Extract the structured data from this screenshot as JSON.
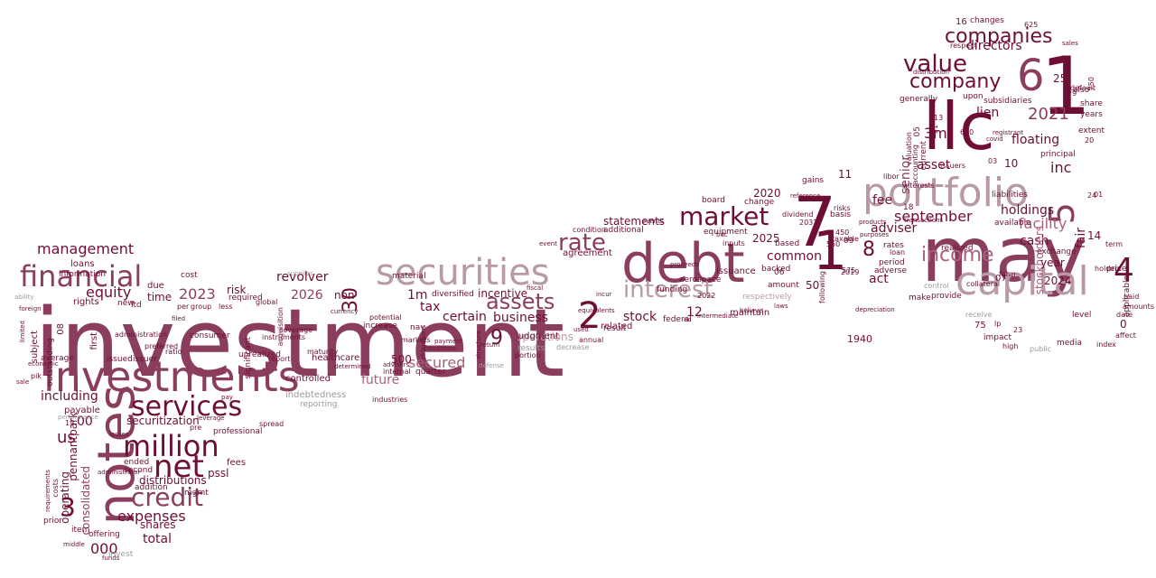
{
  "palette": {
    "dark": "#6e0e35",
    "mauve": "#8a3d5c",
    "rose": "#a9607d",
    "pale": "#b89aa6",
    "grey": "#9a9a9a"
  },
  "words": [
    {
      "text": "investment",
      "color": "mauve"
    },
    {
      "text": "investments",
      "color": "mauve"
    },
    {
      "text": "notes",
      "color": "mauve"
    },
    {
      "text": "llc",
      "color": "dark"
    },
    {
      "text": "may",
      "color": "mauve"
    },
    {
      "text": "debt",
      "color": "mauve"
    },
    {
      "text": "7",
      "color": "dark"
    },
    {
      "text": "1",
      "color": "dark"
    },
    {
      "text": "1",
      "color": "dark"
    },
    {
      "text": "6",
      "color": "mauve"
    },
    {
      "text": "securities",
      "color": "pale"
    },
    {
      "text": "portfolio",
      "color": "pale"
    },
    {
      "text": "capital",
      "color": "pale"
    },
    {
      "text": "interest",
      "color": "pale"
    },
    {
      "text": "financial",
      "color": "mauve"
    },
    {
      "text": "services",
      "color": "dark"
    },
    {
      "text": "million",
      "color": "dark"
    },
    {
      "text": "net",
      "color": "dark"
    },
    {
      "text": "credit",
      "color": "mauve"
    },
    {
      "text": "value",
      "color": "dark"
    },
    {
      "text": "company",
      "color": "dark"
    },
    {
      "text": "companies",
      "color": "dark"
    },
    {
      "text": "market",
      "color": "dark"
    },
    {
      "text": "income",
      "color": "rose"
    },
    {
      "text": "rate",
      "color": "mauve"
    },
    {
      "text": "assets",
      "color": "mauve"
    },
    {
      "text": "2",
      "color": "dark"
    },
    {
      "text": "4",
      "color": "dark"
    },
    {
      "text": "5",
      "color": "mauve"
    },
    {
      "text": "9",
      "color": "dark"
    },
    {
      "text": "3",
      "color": "dark"
    },
    {
      "text": "8",
      "color": "dark"
    },
    {
      "text": "30",
      "color": "dark"
    },
    {
      "text": "2021",
      "color": "mauve"
    },
    {
      "text": "2023",
      "color": "mauve"
    },
    {
      "text": "2026",
      "color": "mauve"
    },
    {
      "text": "3m",
      "color": "dark"
    },
    {
      "text": "1m",
      "color": "dark"
    },
    {
      "text": "management",
      "color": "dark"
    },
    {
      "text": "equity",
      "color": "dark"
    },
    {
      "text": "including",
      "color": "dark"
    },
    {
      "text": "expenses",
      "color": "dark"
    },
    {
      "text": "securitization",
      "color": "dark"
    },
    {
      "text": "total",
      "color": "dark"
    },
    {
      "text": "us",
      "color": "dark"
    },
    {
      "text": "000",
      "color": "dark"
    },
    {
      "text": "00",
      "color": "dark"
    },
    {
      "text": "september",
      "color": "dark"
    },
    {
      "text": "adviser",
      "color": "dark"
    },
    {
      "text": "floating",
      "color": "dark"
    },
    {
      "text": "facility",
      "color": "rose"
    },
    {
      "text": "holdings",
      "color": "dark"
    },
    {
      "text": "cash",
      "color": "dark"
    },
    {
      "text": "inc",
      "color": "dark"
    },
    {
      "text": "lien",
      "color": "dark"
    },
    {
      "text": "directors",
      "color": "dark"
    },
    {
      "text": "senior",
      "color": "mauve"
    },
    {
      "text": "fair",
      "color": "dark"
    },
    {
      "text": "stockholders",
      "color": "rose"
    },
    {
      "text": "asset",
      "color": "dark"
    },
    {
      "text": "fee",
      "color": "dark"
    },
    {
      "text": "act",
      "color": "dark"
    },
    {
      "text": "common",
      "color": "dark"
    },
    {
      "text": "business",
      "color": "dark"
    },
    {
      "text": "secured",
      "color": "rose"
    },
    {
      "text": "statements",
      "color": "dark"
    },
    {
      "text": "incentive",
      "color": "dark"
    },
    {
      "text": "agreement",
      "color": "dark"
    },
    {
      "text": "revolver",
      "color": "dark"
    },
    {
      "text": "tax",
      "color": "dark"
    },
    {
      "text": "certain",
      "color": "dark"
    },
    {
      "text": "stock",
      "color": "dark"
    },
    {
      "text": "risk",
      "color": "dark"
    },
    {
      "text": "time",
      "color": "dark"
    },
    {
      "text": "non",
      "color": "dark"
    },
    {
      "text": "pennantpark",
      "color": "dark"
    },
    {
      "text": "consolidated",
      "color": "mauve"
    },
    {
      "text": "operating",
      "color": "dark"
    },
    {
      "text": "pssl",
      "color": "dark"
    },
    {
      "text": "distributions",
      "color": "dark"
    },
    {
      "text": "shares",
      "color": "dark"
    },
    {
      "text": "future",
      "color": "rose"
    },
    {
      "text": "operations",
      "color": "pale"
    },
    {
      "text": "year",
      "color": "dark"
    },
    {
      "text": "2024",
      "color": "dark"
    },
    {
      "text": "2020",
      "color": "dark"
    },
    {
      "text": "2025",
      "color": "dark"
    },
    {
      "text": "12",
      "color": "dark"
    },
    {
      "text": "10",
      "color": "dark"
    },
    {
      "text": "11",
      "color": "dark"
    },
    {
      "text": "25",
      "color": "dark"
    },
    {
      "text": "14",
      "color": "dark"
    },
    {
      "text": "50",
      "color": "dark"
    },
    {
      "text": "500",
      "color": "dark"
    },
    {
      "text": "0",
      "color": "dark"
    },
    {
      "text": "loans",
      "color": "dark"
    },
    {
      "text": "information",
      "color": "dark"
    },
    {
      "text": "subject",
      "color": "dark"
    },
    {
      "text": "outstanding",
      "color": "dark"
    },
    {
      "text": "first",
      "color": "dark"
    },
    {
      "text": "due",
      "color": "dark"
    },
    {
      "text": "cost",
      "color": "dark"
    },
    {
      "text": "ltd",
      "color": "dark"
    },
    {
      "text": "new",
      "color": "dark"
    },
    {
      "text": "issued",
      "color": "dark"
    },
    {
      "text": "issuer",
      "color": "dark"
    },
    {
      "text": "average",
      "color": "dark"
    },
    {
      "text": "payable",
      "color": "dark"
    },
    {
      "text": "healthcare",
      "color": "dark"
    },
    {
      "text": "unrealized",
      "color": "dark"
    },
    {
      "text": "consumer",
      "color": "dark"
    },
    {
      "text": "required",
      "color": "dark"
    },
    {
      "text": "significant",
      "color": "dark"
    },
    {
      "text": "professional",
      "color": "dark"
    },
    {
      "text": "ended",
      "color": "dark"
    },
    {
      "text": "second",
      "color": "dark"
    },
    {
      "text": "addition",
      "color": "dark"
    },
    {
      "text": "fees",
      "color": "dark"
    },
    {
      "text": "offering",
      "color": "dark"
    },
    {
      "text": "invest",
      "color": "grey"
    },
    {
      "text": "item",
      "color": "dark"
    },
    {
      "text": "prior",
      "color": "dark"
    },
    {
      "text": "pik",
      "color": "dark"
    },
    {
      "text": "indebtedness",
      "color": "grey"
    },
    {
      "text": "reporting",
      "color": "grey"
    },
    {
      "text": "results",
      "color": "grey"
    },
    {
      "text": "quarter",
      "color": "dark"
    },
    {
      "text": "internal",
      "color": "dark"
    },
    {
      "text": "diversified",
      "color": "dark"
    },
    {
      "text": "material",
      "color": "dark"
    },
    {
      "text": "nav",
      "color": "dark"
    },
    {
      "text": "increase",
      "color": "dark"
    },
    {
      "text": "potential",
      "color": "dark"
    },
    {
      "text": "funding",
      "color": "dark"
    },
    {
      "text": "aerospace",
      "color": "dark"
    },
    {
      "text": "federal",
      "color": "dark"
    },
    {
      "text": "result",
      "color": "dark"
    },
    {
      "text": "based",
      "color": "dark"
    },
    {
      "text": "backed",
      "color": "dark"
    },
    {
      "text": "amount",
      "color": "dark"
    },
    {
      "text": "respectively",
      "color": "pale"
    },
    {
      "text": "basis",
      "color": "dark"
    },
    {
      "text": "risks",
      "color": "dark"
    },
    {
      "text": "gains",
      "color": "dark"
    },
    {
      "text": "board",
      "color": "dark"
    },
    {
      "text": "change",
      "color": "dark"
    },
    {
      "text": "equipment",
      "color": "dark"
    },
    {
      "text": "additional",
      "color": "dark"
    },
    {
      "text": "condition",
      "color": "dark"
    },
    {
      "text": "following",
      "color": "dark"
    },
    {
      "text": "rates",
      "color": "dark"
    },
    {
      "text": "loan",
      "color": "dark"
    },
    {
      "text": "period",
      "color": "dark"
    },
    {
      "text": "adverse",
      "color": "dark"
    },
    {
      "text": "make",
      "color": "dark"
    },
    {
      "text": "generally",
      "color": "dark"
    },
    {
      "text": "current",
      "color": "dark"
    },
    {
      "text": "realized",
      "color": "dark"
    },
    {
      "text": "available",
      "color": "dark"
    },
    {
      "text": "liabilities",
      "color": "dark"
    },
    {
      "text": "exchange",
      "color": "dark"
    },
    {
      "text": "principal",
      "color": "dark"
    },
    {
      "text": "subsidiaries",
      "color": "dark"
    },
    {
      "text": "upon",
      "color": "dark"
    },
    {
      "text": "also",
      "color": "dark"
    },
    {
      "text": "share",
      "color": "dark"
    },
    {
      "text": "years",
      "color": "dark"
    },
    {
      "text": "extent",
      "color": "dark"
    },
    {
      "text": "changes",
      "color": "dark"
    },
    {
      "text": "respect",
      "color": "dark"
    },
    {
      "text": "default",
      "color": "dark"
    },
    {
      "text": "valuation",
      "color": "dark"
    },
    {
      "text": "accounting",
      "color": "dark"
    },
    {
      "text": "interests",
      "color": "dark"
    },
    {
      "text": "level",
      "color": "dark"
    },
    {
      "text": "price",
      "color": "dark"
    },
    {
      "text": "term",
      "color": "dark"
    },
    {
      "text": "paid",
      "color": "dark"
    },
    {
      "text": "amounts",
      "color": "dark"
    },
    {
      "text": "date",
      "color": "dark"
    },
    {
      "text": "applicable",
      "color": "dark"
    },
    {
      "text": "holders",
      "color": "dark"
    },
    {
      "text": "media",
      "color": "dark"
    },
    {
      "text": "impact",
      "color": "dark"
    },
    {
      "text": "collateral",
      "color": "dark"
    },
    {
      "text": "provide",
      "color": "dark"
    },
    {
      "text": "control",
      "color": "grey"
    },
    {
      "text": "receive",
      "color": "grey"
    },
    {
      "text": "public",
      "color": "grey"
    },
    {
      "text": "form",
      "color": "dark"
    },
    {
      "text": "lp",
      "color": "dark"
    },
    {
      "text": "75",
      "color": "dark"
    },
    {
      "text": "1940",
      "color": "dark"
    },
    {
      "text": "575",
      "color": "dark"
    },
    {
      "text": "550",
      "color": "dark"
    },
    {
      "text": "450",
      "color": "dark"
    },
    {
      "text": "taxable",
      "color": "dark"
    },
    {
      "text": "libor",
      "color": "dark"
    },
    {
      "text": "issuers",
      "color": "dark"
    },
    {
      "text": "markets",
      "color": "dark"
    },
    {
      "text": "report",
      "color": "dark"
    },
    {
      "text": "global",
      "color": "dark"
    },
    {
      "text": "instruments",
      "color": "dark"
    },
    {
      "text": "preferred",
      "color": "dark"
    },
    {
      "text": "ratio",
      "color": "dark"
    },
    {
      "text": "group",
      "color": "dark"
    },
    {
      "text": "coverage",
      "color": "dark"
    },
    {
      "text": "spread",
      "color": "dark"
    },
    {
      "text": "per",
      "color": "dark"
    },
    {
      "text": "less",
      "color": "dark"
    },
    {
      "text": "industries",
      "color": "dark"
    },
    {
      "text": "portion",
      "color": "dark"
    },
    {
      "text": "annual",
      "color": "dark"
    },
    {
      "text": "decrease",
      "color": "grey"
    },
    {
      "text": "defense",
      "color": "grey"
    },
    {
      "text": "costs",
      "color": "dark"
    },
    {
      "text": "foreign",
      "color": "dark"
    },
    {
      "text": "ability",
      "color": "grey"
    },
    {
      "text": "limited",
      "color": "dark"
    },
    {
      "text": "fiscal",
      "color": "dark"
    },
    {
      "text": "proceeds",
      "color": "dark"
    },
    {
      "text": "distribution",
      "color": "dark"
    },
    {
      "text": "sales",
      "color": "dark"
    },
    {
      "text": "registrant",
      "color": "dark"
    },
    {
      "text": "covid",
      "color": "dark"
    },
    {
      "text": "bdc",
      "color": "dark"
    },
    {
      "text": "reference",
      "color": "dark"
    },
    {
      "text": "purposes",
      "color": "dark"
    },
    {
      "text": "transactions",
      "color": "dark"
    },
    {
      "text": "products",
      "color": "dark"
    },
    {
      "text": "event",
      "color": "dark"
    },
    {
      "text": "equivalents",
      "color": "dark"
    },
    {
      "text": "incur",
      "color": "dark"
    },
    {
      "text": "structure",
      "color": "dark"
    },
    {
      "text": "obligations",
      "color": "dark"
    },
    {
      "text": "conditions",
      "color": "dark"
    },
    {
      "text": "payment",
      "color": "dark"
    },
    {
      "text": "return",
      "color": "dark"
    },
    {
      "text": "depreciation",
      "color": "dark"
    },
    {
      "text": "funds",
      "color": "dark"
    },
    {
      "text": "middle",
      "color": "dark"
    },
    {
      "text": "economic",
      "color": "dark"
    },
    {
      "text": "sale",
      "color": "dark"
    },
    {
      "text": "performance",
      "color": "grey"
    },
    {
      "text": "supplies",
      "color": "grey"
    },
    {
      "text": "currency",
      "color": "dark"
    },
    {
      "text": "pay",
      "color": "dark"
    },
    {
      "text": "losses",
      "color": "dark"
    },
    {
      "text": "leverage",
      "color": "dark"
    },
    {
      "text": "administrator",
      "color": "dark"
    },
    {
      "text": "requirements",
      "color": "dark"
    },
    {
      "text": "determined",
      "color": "dark"
    },
    {
      "text": "advisers",
      "color": "dark"
    },
    {
      "text": "laws",
      "color": "dark"
    },
    {
      "text": "believe",
      "color": "dark"
    },
    {
      "text": "intermediate",
      "color": "dark"
    },
    {
      "text": "ric",
      "color": "dark"
    },
    {
      "text": "used",
      "color": "dark"
    },
    {
      "text": "events",
      "color": "dark"
    },
    {
      "text": "filed",
      "color": "dark"
    },
    {
      "text": "issuance",
      "color": "dark"
    },
    {
      "text": "maintain",
      "color": "dark"
    },
    {
      "text": "related",
      "color": "dark"
    },
    {
      "text": "rights",
      "color": "dark"
    },
    {
      "text": "controlled",
      "color": "dark"
    },
    {
      "text": "mgmt",
      "color": "dark"
    },
    {
      "text": "06",
      "color": "dark"
    },
    {
      "text": "05",
      "color": "dark"
    },
    {
      "text": "09",
      "color": "dark"
    },
    {
      "text": "08",
      "color": "dark"
    },
    {
      "text": "07",
      "color": "dark"
    },
    {
      "text": "16",
      "color": "dark"
    },
    {
      "text": "18",
      "color": "dark"
    },
    {
      "text": "19",
      "color": "dark"
    },
    {
      "text": "20",
      "color": "dark"
    },
    {
      "text": "13",
      "color": "dark"
    },
    {
      "text": "2031",
      "color": "dark"
    },
    {
      "text": "2022",
      "color": "dark"
    },
    {
      "text": "2019",
      "color": "dark"
    },
    {
      "text": "03",
      "color": "dark"
    },
    {
      "text": "01",
      "color": "dark"
    },
    {
      "text": "24",
      "color": "dark"
    },
    {
      "text": "29",
      "color": "dark"
    },
    {
      "text": "625",
      "color": "dark"
    },
    {
      "text": "600",
      "color": "dark"
    },
    {
      "text": "750",
      "color": "dark"
    },
    {
      "text": "31",
      "color": "dark"
    },
    {
      "text": "23",
      "color": "dark"
    },
    {
      "text": "high",
      "color": "dark"
    },
    {
      "text": "index",
      "color": "dark"
    },
    {
      "text": "affect",
      "color": "dark"
    },
    {
      "text": "dividend",
      "color": "dark"
    },
    {
      "text": "inputs",
      "color": "dark"
    },
    {
      "text": "administration",
      "color": "dark"
    },
    {
      "text": "acquisition",
      "color": "dark"
    },
    {
      "text": "maturity",
      "color": "dark"
    },
    {
      "text": "pre",
      "color": "dark"
    },
    {
      "text": "judgment",
      "color": "dark"
    },
    {
      "text": "covenants",
      "color": "dark"
    },
    {
      "text": "terms",
      "color": "dark"
    },
    {
      "text": "general",
      "color": "dark"
    },
    {
      "text": "bear",
      "color": "dark"
    },
    {
      "text": "factors",
      "color": "dark"
    },
    {
      "text": "materially",
      "color": "dark"
    },
    {
      "text": "discussion",
      "color": "dark"
    },
    {
      "text": "provided",
      "color": "dark"
    },
    {
      "text": "operations",
      "color": "dark"
    }
  ]
}
